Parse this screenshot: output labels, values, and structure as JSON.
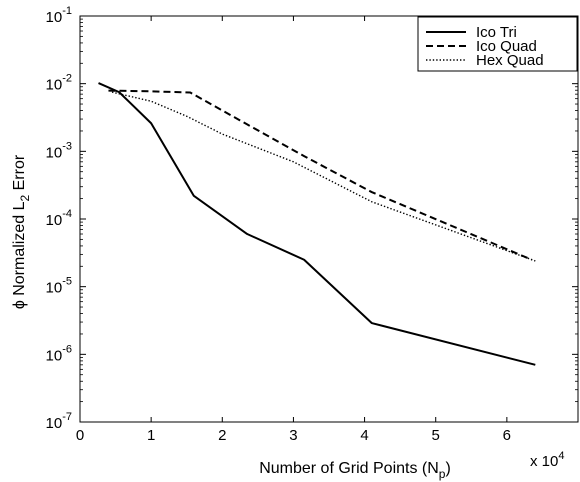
{
  "chart_data": {
    "type": "line",
    "xlabel": "Number of Grid Points (N",
    "xlabel_sub": "p",
    "xlabel_close": ")",
    "x_multiplier": "x 10",
    "x_multiplier_exp": "4",
    "ylabel_prefix": "ϕ Normalized L",
    "ylabel_sub": "2",
    "ylabel_suffix": " Error",
    "xlim": [
      0,
      7
    ],
    "ylim": [
      1e-07,
      0.1
    ],
    "yscale": "log",
    "grid": false,
    "legend_position": "top-right",
    "x_ticks": [
      "0",
      "1",
      "2",
      "3",
      "4",
      "5",
      "6"
    ],
    "y_ticks": [
      {
        "base": "10",
        "exp": "-7",
        "value": 1e-07
      },
      {
        "base": "10",
        "exp": "-6",
        "value": 1e-06
      },
      {
        "base": "10",
        "exp": "-5",
        "value": 1e-05
      },
      {
        "base": "10",
        "exp": "-4",
        "value": 0.0001
      },
      {
        "base": "10",
        "exp": "-3",
        "value": 0.001
      },
      {
        "base": "10",
        "exp": "-2",
        "value": 0.01
      },
      {
        "base": "10",
        "exp": "-1",
        "value": 0.1
      }
    ],
    "series": [
      {
        "name": "Ico Tri",
        "style": "solid",
        "color": "#000000",
        "x": [
          0.26,
          0.55,
          1.0,
          1.6,
          2.35,
          3.15,
          4.1,
          6.4
        ],
        "y": [
          0.0102,
          0.0075,
          0.0026,
          0.00022,
          6e-05,
          2.5e-05,
          2.9e-06,
          7e-07
        ]
      },
      {
        "name": "Ico Quad",
        "style": "dashed",
        "color": "#000000",
        "x": [
          0.4,
          1.0,
          1.55,
          2.35,
          3.15,
          4.1,
          6.35
        ],
        "y": [
          0.0079,
          0.0077,
          0.0074,
          0.0025,
          0.00085,
          0.00025,
          2.5e-05
        ]
      },
      {
        "name": "Hex Quad",
        "style": "dotted",
        "color": "#000000",
        "x": [
          0.45,
          1.0,
          1.5,
          2.0,
          3.0,
          4.1,
          6.4
        ],
        "y": [
          0.0075,
          0.0055,
          0.0033,
          0.0018,
          0.0007,
          0.00018,
          2.4e-05
        ]
      }
    ]
  }
}
